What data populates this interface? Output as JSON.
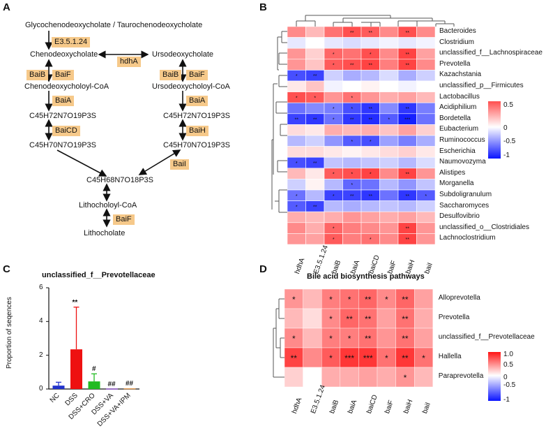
{
  "panels": {
    "a": "A",
    "b": "B",
    "c": "C",
    "d": "D"
  },
  "pathway": {
    "top": "Glycochenodeoxycholate / Taurochenodeoxycholate",
    "cdca": "Chenodeoxycholate",
    "udca": "Ursodeoxycholate",
    "cdca_coa": "Chenodeoxycholoyl-CoA",
    "udca_coa": "Ursodeoxycholoyl-CoA",
    "f1": "C45H72N7O19P3S",
    "f2": "C45H70N7O19P3S",
    "f3": "C45H68N7O18P3S",
    "lca_coa": "Lithocholoyl-CoA",
    "lca": "Lithocholate",
    "enz": {
      "e3": "E3.5.1.24",
      "hdhA": "hdhA",
      "baiB": "BaiB",
      "baiF": "BaiF",
      "baiA": "BaiA",
      "baiCD": "BaiCD",
      "baiH": "BaiH",
      "baiI": "BaiI"
    }
  },
  "heatmapB": {
    "rows": [
      "Bacteroides",
      "Clostridium",
      "unclassified_f__Lachnospiraceae",
      "Prevotella",
      "Kazachstania",
      "unclassified_p__Firmicutes",
      "Lactobacillus",
      "Acidiphilium",
      "Bordetella",
      "Eubacterium",
      "Ruminococcus",
      "Escherichia",
      "Naumovozyma",
      "Alistipes",
      "Morganella",
      "Subdoligranulum",
      "Saccharomyces",
      "Desulfovibrio",
      "unclassified_o__Clostridiales",
      "Lachnoclostridium"
    ],
    "cols": [
      "hdhA",
      "E3.5.1.24",
      "baiB",
      "baiA",
      "baiCD",
      "baiF",
      "baiH",
      "baiI"
    ],
    "values": [
      [
        0.5,
        0.3,
        0.6,
        0.75,
        0.7,
        0.5,
        0.75,
        0.5
      ],
      [
        -0.1,
        0.0,
        -0.1,
        -0.15,
        -0.1,
        -0.05,
        -0.1,
        -0.05
      ],
      [
        0.45,
        0.2,
        0.65,
        0.6,
        0.75,
        0.5,
        0.8,
        0.4
      ],
      [
        0.45,
        0.25,
        0.7,
        0.75,
        0.8,
        0.55,
        0.8,
        0.5
      ],
      [
        -0.75,
        -0.8,
        -0.2,
        -0.35,
        -0.3,
        -0.15,
        -0.35,
        -0.2
      ],
      [
        0.1,
        0.25,
        -0.05,
        0.0,
        0.05,
        0.0,
        -0.05,
        0.0
      ],
      [
        0.75,
        0.7,
        0.45,
        0.6,
        0.45,
        0.35,
        0.4,
        0.3
      ],
      [
        -0.6,
        -0.5,
        -0.55,
        -0.75,
        -0.85,
        -0.5,
        -0.85,
        -0.55
      ],
      [
        -0.8,
        -0.85,
        -0.6,
        -0.85,
        -0.9,
        -0.7,
        -0.95,
        -0.6
      ],
      [
        0.15,
        0.1,
        0.35,
        0.3,
        0.35,
        0.25,
        0.4,
        0.2
      ],
      [
        -0.3,
        -0.2,
        -0.45,
        -0.7,
        -0.75,
        -0.4,
        -0.55,
        -0.35
      ],
      [
        0.15,
        0.15,
        0.1,
        0.05,
        0.1,
        0.15,
        0.2,
        0.1
      ],
      [
        -0.75,
        -0.8,
        -0.25,
        -0.3,
        -0.25,
        -0.2,
        -0.3,
        -0.15
      ],
      [
        0.3,
        0.1,
        0.7,
        0.75,
        0.8,
        0.5,
        0.8,
        0.45
      ],
      [
        -0.2,
        0.05,
        -0.3,
        -0.65,
        -0.6,
        -0.3,
        -0.45,
        -0.25
      ],
      [
        -0.6,
        -0.3,
        -0.8,
        -0.8,
        -0.85,
        -0.6,
        -0.85,
        -0.7
      ],
      [
        -0.7,
        -0.8,
        -0.3,
        -0.35,
        -0.3,
        -0.25,
        -0.3,
        -0.2
      ],
      [
        0.35,
        0.3,
        0.35,
        0.45,
        0.4,
        0.35,
        0.4,
        0.3
      ],
      [
        0.5,
        0.35,
        0.65,
        0.55,
        0.5,
        0.45,
        0.8,
        0.45
      ],
      [
        0.45,
        0.4,
        0.7,
        0.55,
        0.6,
        0.5,
        0.8,
        0.45
      ]
    ],
    "stars": [
      [
        "",
        "",
        "",
        "**",
        "**",
        "",
        "**",
        ""
      ],
      [
        "",
        "",
        "",
        "",
        "",
        "",
        "",
        ""
      ],
      [
        "",
        "",
        "*",
        "",
        "*",
        "",
        "**",
        ""
      ],
      [
        "",
        "",
        "*",
        "**",
        "**",
        "",
        "**",
        ""
      ],
      [
        "*",
        "**",
        "",
        "",
        "",
        "",
        "",
        ""
      ],
      [
        "",
        "",
        "",
        "",
        "",
        "",
        "",
        ""
      ],
      [
        "*",
        "*",
        "",
        "*",
        "",
        "",
        "",
        ""
      ],
      [
        "",
        "",
        "*",
        "*",
        "**",
        "",
        "**",
        ""
      ],
      [
        "**",
        "**",
        "*",
        "**",
        "**",
        "*",
        "***",
        ""
      ],
      [
        "",
        "",
        "",
        "",
        "",
        "",
        "",
        ""
      ],
      [
        "",
        "",
        "",
        "*",
        "*",
        "",
        "",
        ""
      ],
      [
        "",
        "",
        "",
        "",
        "",
        "",
        "",
        ""
      ],
      [
        "*",
        "**",
        "",
        "",
        "",
        "",
        "",
        ""
      ],
      [
        "",
        "",
        "*",
        "*",
        "*",
        "",
        "**",
        ""
      ],
      [
        "",
        "",
        "",
        "*",
        "",
        "",
        "",
        ""
      ],
      [
        "*",
        "",
        "*",
        "**",
        "**",
        "",
        "**",
        "*"
      ],
      [
        "*",
        "**",
        "",
        "",
        "",
        "",
        "",
        ""
      ],
      [
        "",
        "",
        "",
        "",
        "",
        "",
        "",
        ""
      ],
      [
        "",
        "",
        "*",
        "",
        "",
        "",
        "**",
        ""
      ],
      [
        "",
        "",
        "*",
        "",
        "*",
        "",
        "**",
        ""
      ]
    ],
    "legend": {
      "ticks": [
        "0.5",
        "0",
        "-0.5",
        "-1"
      ]
    }
  },
  "chartC": {
    "chart_data": {
      "type": "bar",
      "title": "unclassified_f__Prevotellaceae",
      "ylabel": "Proportion of seqences",
      "categories": [
        "NC",
        "DSS",
        "DSS+CRO",
        "DSS+VA",
        "DSS+VA+IPM"
      ],
      "values": [
        0.2,
        2.35,
        0.45,
        0.02,
        0.03
      ],
      "errors": [
        0.2,
        2.5,
        0.45,
        0.0,
        0.0
      ],
      "colors": [
        "#2233cc",
        "#ee1111",
        "#22bb22",
        "#7722cc",
        "#ee8822"
      ],
      "annotations": [
        "",
        "**",
        "#",
        "##",
        "##"
      ],
      "ylim": [
        0,
        6
      ],
      "yticks": [
        "0",
        "2",
        "4",
        "6"
      ]
    }
  },
  "heatmapD": {
    "title": "Bile acid biosynthesis pathways",
    "rows": [
      "Alloprevotella",
      "Prevotella",
      "unclassified_f__Prevotellaceae",
      "Hallella",
      "Paraprevotella"
    ],
    "cols": [
      "hdhA",
      "E3.5.1.24",
      "baiB",
      "baiA",
      "baiCD",
      "baiF",
      "baiH",
      "baiI"
    ],
    "values": [
      [
        0.45,
        0.3,
        0.55,
        0.6,
        0.65,
        0.5,
        0.65,
        0.4
      ],
      [
        0.3,
        0.15,
        0.5,
        0.65,
        0.6,
        0.4,
        0.6,
        0.35
      ],
      [
        0.5,
        0.3,
        0.55,
        0.55,
        0.6,
        0.45,
        0.6,
        0.4
      ],
      [
        0.8,
        0.5,
        0.7,
        0.85,
        0.85,
        0.6,
        0.85,
        0.6
      ],
      [
        0.2,
        0.0,
        0.35,
        0.35,
        0.4,
        0.35,
        0.45,
        0.3
      ]
    ],
    "stars": [
      [
        "*",
        "",
        "*",
        "*",
        "**",
        "*",
        "**",
        ""
      ],
      [
        "",
        "",
        "*",
        "**",
        "**",
        "",
        "**",
        ""
      ],
      [
        "*",
        "",
        "*",
        "*",
        "**",
        "",
        "**",
        ""
      ],
      [
        "**",
        "",
        "*",
        "***",
        "***",
        "*",
        "**",
        "*"
      ],
      [
        "",
        "",
        "",
        "",
        "",
        "",
        "*",
        ""
      ]
    ],
    "legend": {
      "ticks": [
        "1.0",
        "0.5",
        "0",
        "-0.5",
        "-1"
      ]
    }
  }
}
